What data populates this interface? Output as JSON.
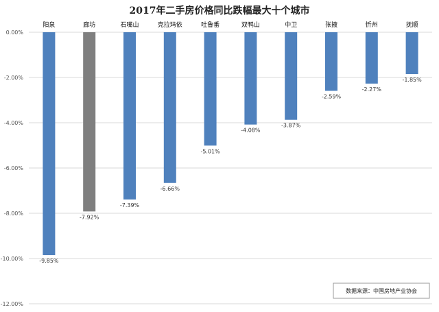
{
  "chart_data": {
    "type": "bar",
    "title": "2017年二手房价格同比跌幅最大十个城市",
    "categories": [
      "阳泉",
      "廊坊",
      "石嘴山",
      "克拉玛依",
      "吐鲁番",
      "双鸭山",
      "中卫",
      "张掖",
      "忻州",
      "抚顺"
    ],
    "values": [
      -9.85,
      -7.92,
      -7.39,
      -6.66,
      -5.01,
      -4.08,
      -3.87,
      -2.59,
      -2.27,
      -1.85
    ],
    "value_labels": [
      "-9.85%",
      "-7.92%",
      "-7.39%",
      "-6.66%",
      "-5.01%",
      "-4.08%",
      "-3.87%",
      "-2.59%",
      "-2.27%",
      "-1.85%"
    ],
    "yticks": [
      0,
      -2,
      -4,
      -6,
      -8,
      -10,
      -12
    ],
    "ytick_labels": [
      "0.00%",
      "-2.00%",
      "-4.00%",
      "-6.00%",
      "-8.00%",
      "-10.00%",
      "-12.00%"
    ],
    "ylim": [
      -12,
      0
    ],
    "grid": true,
    "bar_color": "#4f81bd",
    "highlight_color": "#7f7f7f",
    "highlight_index": 1,
    "source_note": "数据来源：中国房地产业协会"
  }
}
